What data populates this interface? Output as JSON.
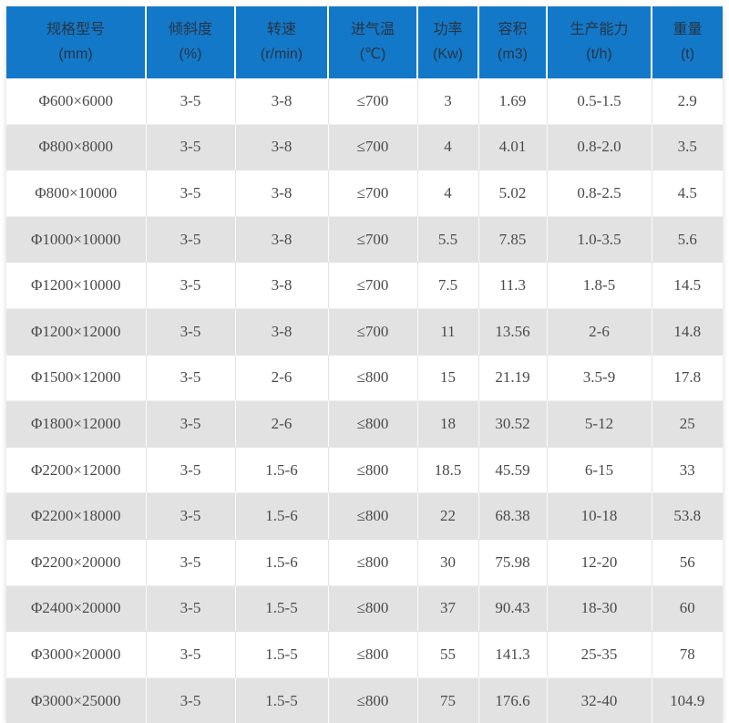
{
  "colors": {
    "header_bg": "#1478c8",
    "header_text": "#253544",
    "row_bg": "#ffffff",
    "row_alt_bg": "#e2e2e2",
    "cell_text": "#4a4a4a",
    "column_divider": "#e4e4e4",
    "header_divider": "#ffffff"
  },
  "chart_data": {
    "type": "table",
    "columns": [
      {
        "label": "规格型号",
        "unit": "(mm)"
      },
      {
        "label": "倾斜度",
        "unit": "(%)"
      },
      {
        "label": "转速",
        "unit": "(r/min)"
      },
      {
        "label": "进气温",
        "unit": "(℃)"
      },
      {
        "label": "功率",
        "unit": "(Kw)"
      },
      {
        "label": "容积",
        "unit": "(m3)"
      },
      {
        "label": "生产能力",
        "unit": "(t/h)"
      },
      {
        "label": "重量",
        "unit": "(t)"
      }
    ],
    "rows": [
      [
        "Φ600×6000",
        "3-5",
        "3-8",
        "≤700",
        "3",
        "1.69",
        "0.5-1.5",
        "2.9"
      ],
      [
        "Φ800×8000",
        "3-5",
        "3-8",
        "≤700",
        "4",
        "4.01",
        "0.8-2.0",
        "3.5"
      ],
      [
        "Φ800×10000",
        "3-5",
        "3-8",
        "≤700",
        "4",
        "5.02",
        "0.8-2.5",
        "4.5"
      ],
      [
        "Φ1000×10000",
        "3-5",
        "3-8",
        "≤700",
        "5.5",
        "7.85",
        "1.0-3.5",
        "5.6"
      ],
      [
        "Φ1200×10000",
        "3-5",
        "3-8",
        "≤700",
        "7.5",
        "11.3",
        "1.8-5",
        "14.5"
      ],
      [
        "Φ1200×12000",
        "3-5",
        "3-8",
        "≤700",
        "11",
        "13.56",
        "2-6",
        "14.8"
      ],
      [
        "Φ1500×12000",
        "3-5",
        "2-6",
        "≤800",
        "15",
        "21.19",
        "3.5-9",
        "17.8"
      ],
      [
        "Φ1800×12000",
        "3-5",
        "2-6",
        "≤800",
        "18",
        "30.52",
        "5-12",
        "25"
      ],
      [
        "Φ2200×12000",
        "3-5",
        "1.5-6",
        "≤800",
        "18.5",
        "45.59",
        "6-15",
        "33"
      ],
      [
        "Φ2200×18000",
        "3-5",
        "1.5-6",
        "≤800",
        "22",
        "68.38",
        "10-18",
        "53.8"
      ],
      [
        "Φ2200×20000",
        "3-5",
        "1.5-6",
        "≤800",
        "30",
        "75.98",
        "12-20",
        "56"
      ],
      [
        "Φ2400×20000",
        "3-5",
        "1.5-5",
        "≤800",
        "37",
        "90.43",
        "18-30",
        "60"
      ],
      [
        "Φ3000×20000",
        "3-5",
        "1.5-5",
        "≤800",
        "55",
        "141.3",
        "25-35",
        "78"
      ],
      [
        "Φ3000×25000",
        "3-5",
        "1.5-5",
        "≤800",
        "75",
        "176.6",
        "32-40",
        "104.9"
      ]
    ]
  }
}
